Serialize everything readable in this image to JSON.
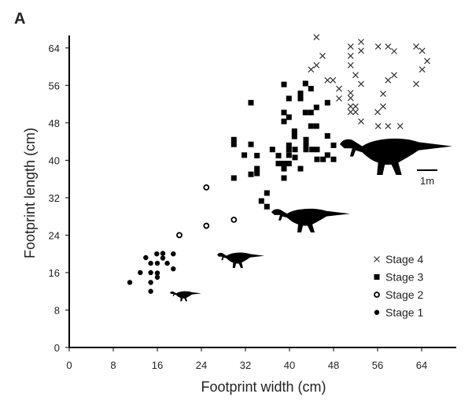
{
  "chart_data": {
    "type": "scatter",
    "panel_label": "A",
    "xlabel": "Footprint width (cm)",
    "ylabel": "Footprint length (cm)",
    "xlim": [
      0,
      70
    ],
    "ylim": [
      0,
      66
    ],
    "xticks": [
      0,
      8,
      16,
      24,
      32,
      40,
      48,
      56,
      64
    ],
    "yticks": [
      0,
      8,
      16,
      24,
      32,
      40,
      48,
      56,
      64
    ],
    "grid": false,
    "legend_position": "right",
    "scale_bar_label": "1m",
    "series": [
      {
        "name": "Stage 4",
        "marker": "x",
        "points": [
          [
            44.9,
            66.3
          ],
          [
            51.1,
            64.3
          ],
          [
            53,
            65.3
          ],
          [
            53,
            63.4
          ],
          [
            56.1,
            64.3
          ],
          [
            57.9,
            64.3
          ],
          [
            59,
            63.3
          ],
          [
            63,
            64.3
          ],
          [
            64.1,
            63.4
          ],
          [
            65,
            61.2
          ],
          [
            46,
            62.3
          ],
          [
            51.1,
            62.3
          ],
          [
            44.9,
            60.3
          ],
          [
            43.9,
            59.4
          ],
          [
            51.1,
            60.3
          ],
          [
            64.1,
            59.4
          ],
          [
            52,
            58.2
          ],
          [
            59,
            58.2
          ],
          [
            57.9,
            57.1
          ],
          [
            46.9,
            57.1
          ],
          [
            47.9,
            57.1
          ],
          [
            53,
            56.3
          ],
          [
            63,
            56.3
          ],
          [
            49,
            55.3
          ],
          [
            51.1,
            54.4
          ],
          [
            57,
            54.2
          ],
          [
            49,
            53.2
          ],
          [
            51.1,
            53.3
          ],
          [
            51.1,
            51.5
          ],
          [
            52,
            51.5
          ],
          [
            57,
            51.5
          ],
          [
            51.1,
            50.3
          ],
          [
            52,
            50.3
          ],
          [
            56,
            50.3
          ],
          [
            53,
            48.3
          ],
          [
            56.1,
            47.3
          ],
          [
            57.9,
            47.3
          ],
          [
            60.1,
            47.3
          ]
        ]
      },
      {
        "name": "Stage 3",
        "marker": "square",
        "points": [
          [
            33,
            52.3
          ],
          [
            39,
            56.2
          ],
          [
            42.9,
            56.4
          ],
          [
            43.9,
            55.3
          ],
          [
            42,
            54.3
          ],
          [
            42,
            53.2
          ],
          [
            39.9,
            53.2
          ],
          [
            46.9,
            52.3
          ],
          [
            44.9,
            51.3
          ],
          [
            39,
            50.2
          ],
          [
            42.9,
            50.2
          ],
          [
            43.9,
            50.2
          ],
          [
            39.9,
            49.2
          ],
          [
            39,
            48.3
          ],
          [
            43.9,
            47.3
          ],
          [
            44.9,
            47.3
          ],
          [
            40.9,
            46.2
          ],
          [
            40.9,
            45.1
          ],
          [
            46.9,
            45.2
          ],
          [
            29.9,
            44.4
          ],
          [
            29.9,
            43.4
          ],
          [
            43,
            44.4
          ],
          [
            33,
            43.4
          ],
          [
            39.9,
            43.2
          ],
          [
            48,
            43.2
          ],
          [
            43,
            43.4
          ],
          [
            43,
            42.3
          ],
          [
            44.1,
            42.3
          ],
          [
            45,
            42.3
          ],
          [
            39.9,
            42.3
          ],
          [
            41,
            42.3
          ],
          [
            36.9,
            42.3
          ],
          [
            31.8,
            41.1
          ],
          [
            34.1,
            41
          ],
          [
            38,
            41
          ],
          [
            39.9,
            41.1
          ],
          [
            41,
            40.6
          ],
          [
            45,
            40.2
          ],
          [
            46.1,
            40.2
          ],
          [
            46.9,
            41.1
          ],
          [
            48,
            40.2
          ],
          [
            38,
            39.3
          ],
          [
            39,
            39.3
          ],
          [
            39.9,
            39.3
          ],
          [
            39,
            38.2
          ],
          [
            42,
            38.2
          ],
          [
            34.1,
            38.2
          ],
          [
            34.1,
            37.2
          ],
          [
            33,
            37
          ],
          [
            29.9,
            36.2
          ],
          [
            39,
            36.2
          ],
          [
            35.9,
            33
          ],
          [
            34.9,
            31.3
          ],
          [
            35.9,
            30.1
          ]
        ]
      },
      {
        "name": "Stage 2",
        "marker": "circle-open",
        "points": [
          [
            20,
            24
          ],
          [
            24.9,
            26
          ],
          [
            24.9,
            34.2
          ],
          [
            29.9,
            27.3
          ]
        ]
      },
      {
        "name": "Stage 1",
        "marker": "dot",
        "points": [
          [
            13.9,
            19.2
          ],
          [
            15.9,
            20
          ],
          [
            17,
            20.1
          ],
          [
            18.9,
            20
          ],
          [
            17,
            19.1
          ],
          [
            14.8,
            18
          ],
          [
            16,
            18
          ],
          [
            17.8,
            18
          ],
          [
            18.9,
            16.8
          ],
          [
            12.9,
            16
          ],
          [
            14.8,
            16
          ],
          [
            16,
            15.9
          ],
          [
            16,
            15
          ],
          [
            11,
            13.9
          ],
          [
            14.8,
            13.9
          ],
          [
            14.8,
            12
          ]
        ]
      }
    ]
  }
}
